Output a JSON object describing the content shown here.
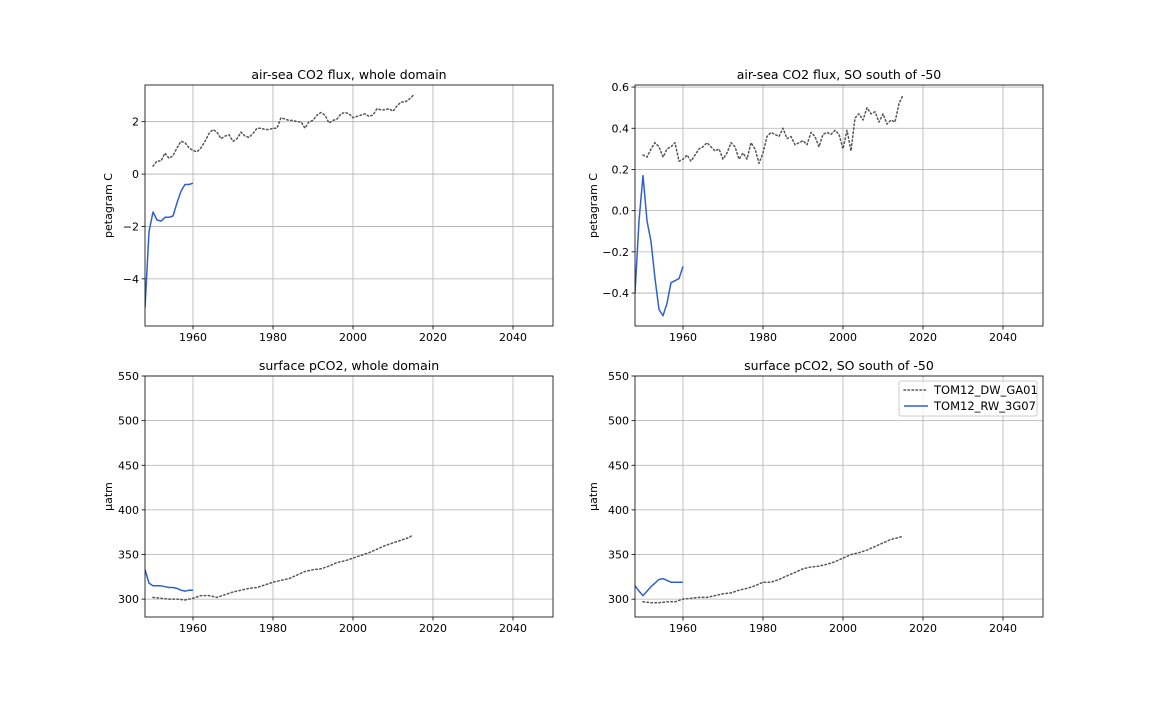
{
  "figure": {
    "legend": {
      "placement": "upper-right of bottom-right panel",
      "entries": [
        {
          "name": "TOM12_DW_GA01",
          "color": "#555555",
          "style": "dotted"
        },
        {
          "name": "TOM12_RW_3G07",
          "color": "#3060cc",
          "style": "solid"
        }
      ]
    }
  },
  "chart_data": [
    {
      "type": "line",
      "title": "air-sea CO2 flux, whole domain",
      "xlabel": "",
      "ylabel": "petagram C",
      "xlim": [
        1948,
        2050
      ],
      "ylim": [
        -5.8,
        3.4
      ],
      "xticks": [
        "1960",
        "1980",
        "2000",
        "2020",
        "2040"
      ],
      "yticks": [
        "−4",
        "−2",
        "0",
        "2"
      ],
      "xtick_values": [
        1960,
        1980,
        2000,
        2020,
        2040
      ],
      "ytick_values": [
        -4,
        -2,
        0,
        2
      ],
      "grid": true,
      "series": [
        {
          "name": "TOM12_DW_GA01",
          "color": "#555555",
          "style": "dotted",
          "x": [
            1950,
            1951,
            1952,
            1953,
            1954,
            1955,
            1956,
            1957,
            1958,
            1959,
            1960,
            1961,
            1962,
            1963,
            1964,
            1965,
            1966,
            1967,
            1968,
            1969,
            1970,
            1971,
            1972,
            1973,
            1974,
            1975,
            1976,
            1977,
            1978,
            1979,
            1980,
            1981,
            1982,
            1983,
            1984,
            1985,
            1986,
            1987,
            1988,
            1989,
            1990,
            1991,
            1992,
            1993,
            1994,
            1995,
            1996,
            1997,
            1998,
            1999,
            2000,
            2001,
            2002,
            2003,
            2004,
            2005,
            2006,
            2007,
            2008,
            2009,
            2010,
            2011,
            2012,
            2013,
            2014,
            2015
          ],
          "y": [
            0.3,
            0.5,
            0.5,
            0.8,
            0.6,
            0.7,
            1.0,
            1.25,
            1.2,
            1.0,
            0.9,
            0.85,
            1.0,
            1.25,
            1.55,
            1.7,
            1.6,
            1.35,
            1.45,
            1.5,
            1.25,
            1.35,
            1.6,
            1.45,
            1.4,
            1.55,
            1.75,
            1.75,
            1.7,
            1.7,
            1.75,
            1.75,
            2.15,
            2.1,
            2.05,
            2.05,
            2.0,
            2.0,
            1.75,
            2.0,
            2.05,
            2.25,
            2.35,
            2.25,
            1.95,
            2.05,
            2.1,
            2.3,
            2.35,
            2.3,
            2.15,
            2.2,
            2.25,
            2.3,
            2.2,
            2.25,
            2.5,
            2.45,
            2.45,
            2.5,
            2.4,
            2.6,
            2.75,
            2.75,
            2.85,
            3.0
          ]
        },
        {
          "name": "TOM12_RW_3G07",
          "color": "#3060cc",
          "style": "solid",
          "x": [
            1948,
            1949,
            1950,
            1951,
            1952,
            1953,
            1954,
            1955,
            1956,
            1957,
            1958,
            1959,
            1960
          ],
          "y": [
            -5.1,
            -2.2,
            -1.45,
            -1.75,
            -1.8,
            -1.65,
            -1.65,
            -1.6,
            -1.1,
            -0.65,
            -0.4,
            -0.4,
            -0.35
          ]
        }
      ]
    },
    {
      "type": "line",
      "title": "air-sea CO2 flux, SO south of -50",
      "xlabel": "",
      "ylabel": "petagram C",
      "xlim": [
        1948,
        2050
      ],
      "ylim": [
        -0.56,
        0.61
      ],
      "xticks": [
        "1960",
        "1980",
        "2000",
        "2020",
        "2040"
      ],
      "yticks": [
        "−0.4",
        "−0.2",
        "0.0",
        "0.2",
        "0.4",
        "0.6"
      ],
      "xtick_values": [
        1960,
        1980,
        2000,
        2020,
        2040
      ],
      "ytick_values": [
        -0.4,
        -0.2,
        0.0,
        0.2,
        0.4,
        0.6
      ],
      "grid": true,
      "series": [
        {
          "name": "TOM12_DW_GA01",
          "color": "#555555",
          "style": "dotted",
          "x": [
            1950,
            1951,
            1952,
            1953,
            1954,
            1955,
            1956,
            1957,
            1958,
            1959,
            1960,
            1961,
            1962,
            1963,
            1964,
            1965,
            1966,
            1967,
            1968,
            1969,
            1970,
            1971,
            1972,
            1973,
            1974,
            1975,
            1976,
            1977,
            1978,
            1979,
            1980,
            1981,
            1982,
            1983,
            1984,
            1985,
            1986,
            1987,
            1988,
            1989,
            1990,
            1991,
            1992,
            1993,
            1994,
            1995,
            1996,
            1997,
            1998,
            1999,
            2000,
            2001,
            2002,
            2003,
            2004,
            2005,
            2006,
            2007,
            2008,
            2009,
            2010,
            2011,
            2012,
            2013,
            2014,
            2015
          ],
          "y": [
            0.27,
            0.26,
            0.3,
            0.33,
            0.31,
            0.26,
            0.3,
            0.31,
            0.33,
            0.24,
            0.25,
            0.27,
            0.24,
            0.27,
            0.3,
            0.31,
            0.33,
            0.31,
            0.29,
            0.3,
            0.25,
            0.28,
            0.33,
            0.31,
            0.25,
            0.28,
            0.25,
            0.33,
            0.3,
            0.23,
            0.28,
            0.36,
            0.38,
            0.37,
            0.36,
            0.4,
            0.35,
            0.36,
            0.32,
            0.33,
            0.34,
            0.32,
            0.38,
            0.36,
            0.31,
            0.37,
            0.38,
            0.37,
            0.39,
            0.37,
            0.3,
            0.39,
            0.29,
            0.45,
            0.47,
            0.44,
            0.5,
            0.47,
            0.48,
            0.43,
            0.47,
            0.42,
            0.44,
            0.43,
            0.52,
            0.56
          ]
        },
        {
          "name": "TOM12_RW_3G07",
          "color": "#3060cc",
          "style": "solid",
          "x": [
            1948,
            1949,
            1950,
            1951,
            1952,
            1953,
            1954,
            1955,
            1956,
            1957,
            1958,
            1959,
            1960
          ],
          "y": [
            -0.4,
            -0.05,
            0.17,
            -0.05,
            -0.15,
            -0.33,
            -0.48,
            -0.51,
            -0.45,
            -0.35,
            -0.34,
            -0.33,
            -0.27
          ]
        }
      ]
    },
    {
      "type": "line",
      "title": "surface pCO2, whole domain",
      "xlabel": "",
      "ylabel": "µatm",
      "xlim": [
        1948,
        2050
      ],
      "ylim": [
        280,
        550
      ],
      "xticks": [
        "1960",
        "1980",
        "2000",
        "2020",
        "2040"
      ],
      "yticks": [
        "300",
        "350",
        "400",
        "450",
        "500",
        "550"
      ],
      "xtick_values": [
        1960,
        1980,
        2000,
        2020,
        2040
      ],
      "ytick_values": [
        300,
        350,
        400,
        450,
        500,
        550
      ],
      "grid": true,
      "series": [
        {
          "name": "TOM12_DW_GA01",
          "color": "#555555",
          "style": "dotted",
          "x": [
            1950,
            1952,
            1954,
            1956,
            1958,
            1960,
            1962,
            1964,
            1966,
            1968,
            1970,
            1972,
            1974,
            1976,
            1978,
            1980,
            1982,
            1984,
            1986,
            1988,
            1990,
            1992,
            1994,
            1996,
            1998,
            2000,
            2002,
            2004,
            2006,
            2008,
            2010,
            2012,
            2014,
            2015
          ],
          "y": [
            302,
            301,
            300,
            300,
            299,
            301,
            304,
            304,
            302,
            305,
            308,
            310,
            312,
            313,
            316,
            319,
            321,
            323,
            327,
            331,
            333,
            334,
            337,
            341,
            343,
            346,
            349,
            352,
            356,
            360,
            363,
            366,
            369,
            372
          ]
        },
        {
          "name": "TOM12_RW_3G07",
          "color": "#3060cc",
          "style": "solid",
          "x": [
            1948,
            1949,
            1950,
            1951,
            1952,
            1953,
            1954,
            1955,
            1956,
            1957,
            1958,
            1959,
            1960
          ],
          "y": [
            333,
            318,
            315,
            315,
            315,
            314,
            313,
            313,
            312,
            310,
            309,
            310,
            310
          ]
        }
      ]
    },
    {
      "type": "line",
      "title": "surface pCO2, SO south of -50",
      "xlabel": "",
      "ylabel": "µatm",
      "xlim": [
        1948,
        2050
      ],
      "ylim": [
        280,
        550
      ],
      "xticks": [
        "1960",
        "1980",
        "2000",
        "2020",
        "2040"
      ],
      "yticks": [
        "300",
        "350",
        "400",
        "450",
        "500",
        "550"
      ],
      "xtick_values": [
        1960,
        1980,
        2000,
        2020,
        2040
      ],
      "ytick_values": [
        300,
        350,
        400,
        450,
        500,
        550
      ],
      "grid": true,
      "series": [
        {
          "name": "TOM12_DW_GA01",
          "color": "#555555",
          "style": "dotted",
          "x": [
            1950,
            1952,
            1954,
            1956,
            1958,
            1960,
            1962,
            1964,
            1966,
            1968,
            1970,
            1972,
            1974,
            1976,
            1978,
            1980,
            1982,
            1984,
            1986,
            1988,
            1990,
            1992,
            1994,
            1996,
            1998,
            2000,
            2002,
            2004,
            2006,
            2008,
            2010,
            2012,
            2014,
            2015
          ],
          "y": [
            297,
            296,
            296,
            297,
            297,
            300,
            301,
            302,
            302,
            304,
            306,
            307,
            310,
            312,
            315,
            319,
            319,
            322,
            326,
            330,
            334,
            336,
            337,
            339,
            342,
            346,
            350,
            352,
            355,
            359,
            363,
            367,
            369,
            371
          ]
        },
        {
          "name": "TOM12_RW_3G07",
          "color": "#3060cc",
          "style": "solid",
          "x": [
            1948,
            1949,
            1950,
            1951,
            1952,
            1953,
            1954,
            1955,
            1956,
            1957,
            1958,
            1959,
            1960
          ],
          "y": [
            315,
            309,
            304,
            309,
            314,
            318,
            322,
            323,
            321,
            319,
            319,
            319,
            319
          ]
        }
      ]
    }
  ]
}
